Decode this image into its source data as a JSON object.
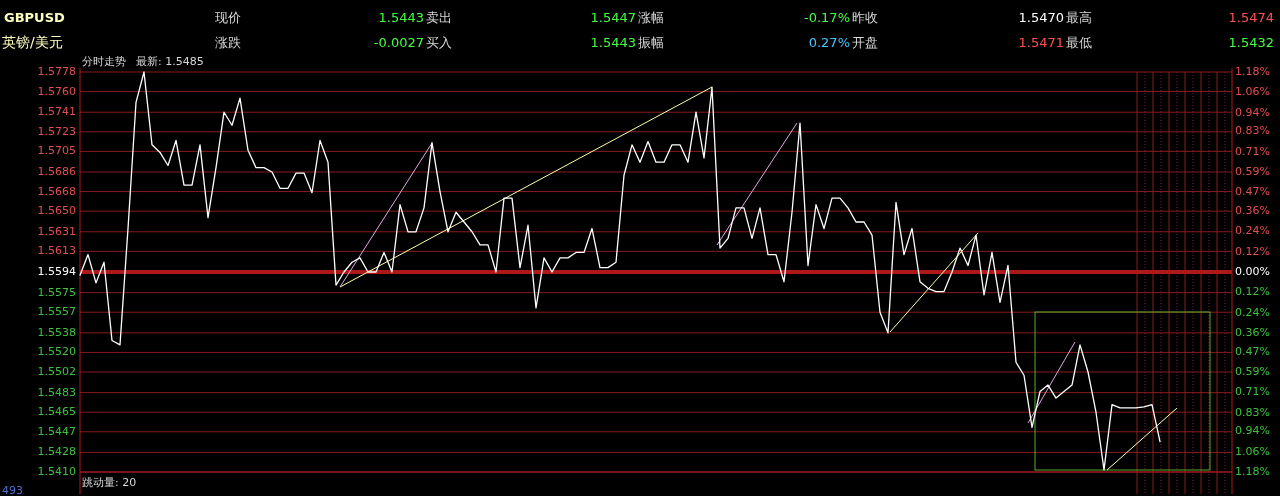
{
  "chart_data": {
    "type": "line",
    "annotations": [
      "GBPUSD",
      "现价",
      "1.5443",
      "卖出",
      "1.5447",
      "涨幅",
      "-0.17%",
      "昨收",
      "1.5470",
      "最高",
      "1.5474",
      "英镑/美元",
      "涨跌",
      "-0.0027",
      "买入",
      "1.5443",
      "振幅",
      "0.27%",
      "开盘",
      "1.5471",
      "最低",
      "1.5432",
      "分时走势",
      "最新: 1.5485",
      "跳动量: 20",
      "493"
    ],
    "categories": [
      null,
      null,
      null,
      null,
      null,
      null,
      null,
      null,
      null,
      null,
      null,
      null,
      null,
      null,
      null,
      null,
      null,
      null,
      null,
      null,
      null,
      null,
      null,
      null,
      null,
      null,
      null,
      null,
      null,
      null,
      null,
      null,
      null,
      null,
      null,
      null,
      null,
      null,
      null,
      null,
      null,
      null,
      null,
      null,
      null,
      null,
      null,
      null,
      null,
      null,
      null,
      null,
      null,
      null,
      null,
      null,
      null,
      null,
      null,
      null,
      null,
      null,
      null,
      null,
      null,
      null,
      null,
      null,
      null,
      null,
      null,
      null,
      null,
      null,
      null,
      null,
      null,
      null,
      null,
      null,
      null,
      null,
      null,
      null,
      null,
      null,
      null,
      null,
      null,
      null,
      null,
      null,
      null,
      null,
      null,
      null,
      null,
      null,
      null,
      null,
      null,
      null,
      null,
      null,
      null,
      null,
      null,
      null,
      null,
      null,
      null,
      null,
      null,
      null,
      null,
      null,
      null,
      null,
      null,
      null,
      null,
      null,
      null,
      null,
      null,
      null,
      null,
      null,
      null,
      null,
      null,
      null,
      null,
      null,
      null,
      null,
      null,
      null,
      null,
      null,
      null,
      null,
      null,
      null,
      null
    ],
    "ylim": [
      1.541,
      1.5778
    ],
    "yticks": [
      1.5778,
      {
        "value": 1.576,
        "label": "1.5760"
      },
      1.5741,
      1.5723,
      1.5705,
      1.5686,
      1.5668,
      {
        "value": 1.565,
        "label": "1.5650"
      },
      1.5631,
      1.5613,
      1.5594,
      1.5575,
      1.5557,
      1.5538,
      {
        "value": 1.552,
        "label": "1.5520"
      },
      1.5502,
      1.5483,
      1.5465,
      1.5447,
      1.5428,
      {
        "value": 1.541,
        "label": "1.5410"
      }
    ],
    "y2lim": [
      -1.18,
      1.18
    ],
    "y2ticks": [
      {
        "value": 1.18,
        "label": "1.18%"
      },
      {
        "value": 1.06,
        "label": "1.06%"
      },
      {
        "value": 0.94,
        "label": "0.94%"
      },
      {
        "value": 0.83,
        "label": "0.83%"
      },
      {
        "value": 0.71,
        "label": "0.71%"
      },
      {
        "value": 0.59,
        "label": "0.59%"
      },
      {
        "value": 0.47,
        "label": "0.47%"
      },
      {
        "value": 0.36,
        "label": "0.36%"
      },
      {
        "value": 0.24,
        "label": "0.24%"
      },
      {
        "value": 0.12,
        "label": "0.12%"
      },
      {
        "value": 0,
        "label": "0.00%"
      },
      {
        "value": -0.12,
        "label": "0.12%"
      },
      {
        "value": -0.24,
        "label": "0.24%"
      },
      {
        "value": -0.36,
        "label": "0.36%"
      },
      {
        "value": -0.47,
        "label": "0.47%"
      },
      {
        "value": -0.59,
        "label": "0.59%"
      },
      {
        "value": -0.71,
        "label": "0.71%"
      },
      {
        "value": -0.83,
        "label": "0.83%"
      },
      {
        "value": -0.94,
        "label": "0.94%"
      },
      {
        "value": -1.06,
        "label": "1.06%"
      },
      {
        "value": -1.18,
        "label": "1.18%"
      }
    ],
    "grid": "y",
    "tick_labels": "y",
    "ref_lines": [
      {
        "axis": "y",
        "value": 1.5594,
        "color": "#b01818"
      }
    ],
    "series": [
      {
        "color": "#ffffff",
        "values": [
          1.5591,
          1.561,
          1.5584,
          1.5603,
          1.5531,
          1.5527,
          1.5634,
          1.575,
          1.5778,
          1.5711,
          1.5704,
          1.5692,
          1.5715,
          1.5674,
          1.5674,
          1.5711,
          1.5644,
          1.569,
          1.5741,
          1.5729,
          1.5754,
          1.5706,
          1.569,
          1.569,
          1.5686,
          1.5671,
          1.5671,
          1.5685,
          1.5685,
          1.5667,
          1.5715,
          1.5695,
          1.5582,
          1.5594,
          1.5603,
          1.5607,
          1.5594,
          1.5594,
          1.5612,
          1.5594,
          1.5656,
          1.5631,
          1.5631,
          1.5653,
          1.5713,
          1.5668,
          1.5631,
          1.5649,
          1.564,
          1.5631,
          1.5619,
          1.5619,
          1.5594,
          1.5662,
          1.5662,
          1.5598,
          1.5637,
          1.5561,
          1.5607,
          1.5594,
          1.5607,
          1.5607,
          1.5612,
          1.5612,
          1.5634,
          1.5598,
          1.5598,
          1.5603,
          1.5683,
          1.5711,
          1.5695,
          1.5714,
          1.5695,
          1.5695,
          1.5711,
          1.5711,
          1.5695,
          1.5741,
          1.5699,
          1.5764,
          1.5616,
          1.5625,
          1.5653,
          1.5653,
          1.5625,
          1.5653,
          1.561,
          1.561,
          1.5585,
          1.5649,
          1.5731,
          1.56,
          1.5656,
          1.5634,
          1.5662,
          1.5662,
          1.5653,
          1.564,
          1.564,
          1.5628,
          1.5557,
          1.5538,
          1.5658,
          1.561,
          1.5634,
          1.5585,
          1.5579,
          1.5576,
          1.5576,
          1.5594,
          1.5616,
          1.56,
          1.5628,
          1.5573,
          1.5612,
          1.5566,
          1.56,
          1.5511,
          1.5499,
          1.5451,
          1.5484,
          1.549,
          1.5478,
          1.5484,
          1.549,
          1.5527,
          1.5502,
          1.5465,
          1.5412,
          1.5472,
          1.5469,
          1.5469,
          1.5469,
          1.547,
          1.5472,
          1.5438,
          null,
          null,
          null,
          null,
          null,
          null,
          null,
          null,
          null
        ]
      }
    ]
  }
}
